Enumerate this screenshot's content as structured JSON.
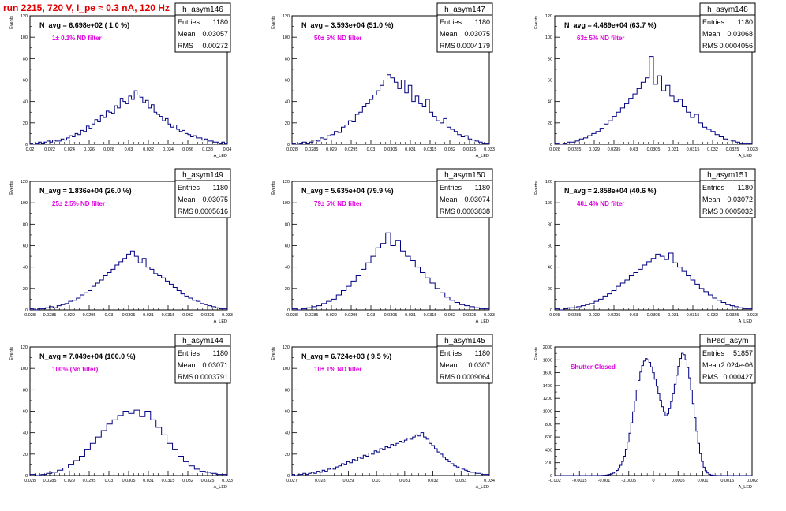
{
  "run_title": "run 2215,   720 V, I_pe ≈ 0.3 nA, 120 Hz",
  "colors": {
    "histogram": "#000080",
    "annotation": "#e000e0",
    "title": "#e00000",
    "text": "#000000"
  },
  "chart_data": [
    {
      "type": "bar",
      "name": "h_asym146",
      "navg": "N_avg = 6.698e+02 ( 1.0 %)",
      "filter": "1± 0.1% ND filter",
      "stats": {
        "entries": "1180",
        "mean": "0.03057",
        "rms": "0.00272"
      },
      "xlim": [
        0.02,
        0.04
      ],
      "ylim": [
        0,
        120
      ],
      "xticks": [
        "0.02",
        "0.022",
        "0.024",
        "0.026",
        "0.028",
        "0.03",
        "0.032",
        "0.034",
        "0.036",
        "0.038",
        "0.04"
      ],
      "yticks": [
        "0",
        "20",
        "40",
        "60",
        "80",
        "100",
        "120"
      ],
      "ylabel": "Events",
      "xlabel": "A_LED",
      "values": [
        1,
        0,
        1,
        2,
        1,
        2,
        3,
        2,
        4,
        3,
        3,
        5,
        4,
        6,
        8,
        7,
        10,
        9,
        13,
        12,
        17,
        15,
        19,
        23,
        21,
        27,
        25,
        31,
        30,
        29,
        36,
        34,
        43,
        40,
        38,
        45,
        42,
        50,
        46,
        44,
        39,
        41,
        34,
        37,
        30,
        28,
        26,
        22,
        24,
        19,
        16,
        18,
        14,
        12,
        13,
        10,
        9,
        7,
        8,
        6,
        6,
        4,
        5,
        3,
        3,
        2,
        2,
        1,
        2,
        1
      ]
    },
    {
      "type": "bar",
      "name": "h_asym147",
      "navg": "N_avg = 3.593e+04 (51.0 %)",
      "filter": "50± 5% ND filter",
      "stats": {
        "entries": "1180",
        "mean": "0.03075",
        "rms": "0.0004179"
      },
      "xlim": [
        0.028,
        0.033
      ],
      "ylim": [
        0,
        120
      ],
      "xticks": [
        "0.028",
        "0.0285",
        "0.029",
        "0.0295",
        "0.03",
        "0.0305",
        "0.031",
        "0.0315",
        "0.032",
        "0.0325",
        "0.033"
      ],
      "yticks": [
        "0",
        "20",
        "40",
        "60",
        "80",
        "100",
        "120"
      ],
      "ylabel": "Events",
      "xlabel": "A_LED",
      "values": [
        1,
        0,
        1,
        2,
        1,
        2,
        4,
        3,
        6,
        5,
        8,
        9,
        12,
        11,
        16,
        18,
        22,
        21,
        28,
        30,
        35,
        38,
        42,
        46,
        50,
        55,
        60,
        65,
        62,
        58,
        52,
        60,
        48,
        55,
        40,
        45,
        38,
        35,
        42,
        30,
        26,
        22,
        20,
        24,
        16,
        14,
        12,
        9,
        7,
        8,
        5,
        4,
        3,
        2,
        1,
        1
      ]
    },
    {
      "type": "bar",
      "name": "h_asym148",
      "navg": "N_avg = 4.489e+04 (63.7 %)",
      "filter": "63± 5% ND filter",
      "stats": {
        "entries": "1180",
        "mean": "0.03068",
        "rms": "0.0004056"
      },
      "xlim": [
        0.028,
        0.033
      ],
      "ylim": [
        0,
        120
      ],
      "xticks": [
        "0.028",
        "0.0285",
        "0.029",
        "0.0295",
        "0.03",
        "0.0305",
        "0.031",
        "0.0315",
        "0.032",
        "0.0325",
        "0.033"
      ],
      "yticks": [
        "0",
        "20",
        "40",
        "60",
        "80",
        "100",
        "120"
      ],
      "ylabel": "Events",
      "xlabel": "A_LED",
      "values": [
        1,
        0,
        1,
        2,
        2,
        3,
        5,
        6,
        8,
        10,
        12,
        15,
        19,
        22,
        26,
        30,
        34,
        38,
        43,
        47,
        52,
        58,
        62,
        82,
        56,
        64,
        50,
        55,
        45,
        40,
        42,
        35,
        30,
        25,
        28,
        20,
        16,
        14,
        12,
        9,
        7,
        5,
        4,
        3,
        2,
        1,
        1,
        1
      ]
    },
    {
      "type": "bar",
      "name": "h_asym149",
      "navg": "N_avg = 1.836e+04 (26.0 %)",
      "filter": "25± 2.5% ND filter",
      "stats": {
        "entries": "1180",
        "mean": "0.03075",
        "rms": "0.0005616"
      },
      "xlim": [
        0.028,
        0.033
      ],
      "ylim": [
        0,
        120
      ],
      "xticks": [
        "0.028",
        "0.0285",
        "0.029",
        "0.0295",
        "0.03",
        "0.0305",
        "0.031",
        "0.0315",
        "0.032",
        "0.0325",
        "0.033"
      ],
      "yticks": [
        "0",
        "20",
        "40",
        "60",
        "80",
        "100",
        "120"
      ],
      "ylabel": "Events",
      "xlabel": "A_LED",
      "values": [
        1,
        0,
        1,
        1,
        2,
        3,
        2,
        4,
        5,
        6,
        8,
        9,
        11,
        14,
        16,
        18,
        22,
        25,
        28,
        32,
        35,
        38,
        42,
        45,
        48,
        52,
        55,
        50,
        44,
        48,
        40,
        38,
        34,
        32,
        30,
        27,
        24,
        21,
        18,
        15,
        13,
        11,
        9,
        8,
        6,
        5,
        4,
        3,
        2,
        1,
        1
      ]
    },
    {
      "type": "bar",
      "name": "h_asym150",
      "navg": "N_avg = 5.635e+04 (79.9 %)",
      "filter": "79± 5% ND filter",
      "stats": {
        "entries": "1180",
        "mean": "0.03074",
        "rms": "0.0003838"
      },
      "xlim": [
        0.028,
        0.033
      ],
      "ylim": [
        0,
        120
      ],
      "xticks": [
        "0.028",
        "0.0285",
        "0.029",
        "0.0295",
        "0.03",
        "0.0305",
        "0.031",
        "0.0315",
        "0.032",
        "0.0325",
        "0.033"
      ],
      "yticks": [
        "0",
        "20",
        "40",
        "60",
        "80",
        "100",
        "120"
      ],
      "ylabel": "Events",
      "xlabel": "A_LED",
      "values": [
        1,
        0,
        1,
        2,
        3,
        4,
        6,
        8,
        10,
        14,
        18,
        22,
        27,
        32,
        38,
        44,
        50,
        58,
        62,
        72,
        60,
        65,
        55,
        50,
        46,
        40,
        35,
        30,
        25,
        20,
        16,
        12,
        9,
        7,
        5,
        4,
        3,
        2,
        1,
        1
      ]
    },
    {
      "type": "bar",
      "name": "h_asym151",
      "navg": "N_avg = 2.858e+04 (40.6 %)",
      "filter": "40± 4% ND filter",
      "stats": {
        "entries": "1180",
        "mean": "0.03072",
        "rms": "0.0005032"
      },
      "xlim": [
        0.028,
        0.033
      ],
      "ylim": [
        0,
        120
      ],
      "xticks": [
        "0.028",
        "0.0285",
        "0.029",
        "0.0295",
        "0.03",
        "0.0305",
        "0.031",
        "0.0315",
        "0.032",
        "0.0325",
        "0.033"
      ],
      "yticks": [
        "0",
        "20",
        "40",
        "60",
        "80",
        "100",
        "120"
      ],
      "ylabel": "Events",
      "xlabel": "A_LED",
      "values": [
        1,
        0,
        1,
        2,
        2,
        3,
        4,
        5,
        6,
        8,
        10,
        13,
        15,
        18,
        22,
        25,
        28,
        32,
        35,
        38,
        42,
        45,
        48,
        52,
        50,
        47,
        53,
        44,
        40,
        36,
        32,
        28,
        24,
        20,
        17,
        14,
        11,
        9,
        7,
        5,
        4,
        3,
        2,
        1,
        1
      ]
    },
    {
      "type": "bar",
      "name": "h_asym144",
      "navg": "N_avg = 7.049e+04 (100.0 %)",
      "filter": "100% (No filter)",
      "stats": {
        "entries": "1180",
        "mean": "0.03071",
        "rms": "0.0003791"
      },
      "xlim": [
        0.028,
        0.033
      ],
      "ylim": [
        0,
        120
      ],
      "xticks": [
        "0.028",
        "0.0285",
        "0.029",
        "0.0295",
        "0.03",
        "0.0305",
        "0.031",
        "0.0315",
        "0.032",
        "0.0325",
        "0.033"
      ],
      "yticks": [
        "0",
        "20",
        "40",
        "60",
        "80",
        "100",
        "120"
      ],
      "ylabel": "Events",
      "xlabel": "A_LED",
      "values": [
        1,
        0,
        1,
        2,
        3,
        5,
        7,
        10,
        14,
        18,
        24,
        30,
        36,
        42,
        48,
        52,
        56,
        60,
        58,
        61,
        55,
        60,
        52,
        45,
        38,
        30,
        24,
        18,
        13,
        9,
        6,
        4,
        3,
        2,
        1,
        1
      ]
    },
    {
      "type": "bar",
      "name": "h_asym145",
      "navg": "N_avg = 6.724e+03 ( 9.5 %)",
      "filter": "10± 1% ND filter",
      "stats": {
        "entries": "1180",
        "mean": "0.0307",
        "rms": "0.0009064"
      },
      "xlim": [
        0.027,
        0.034
      ],
      "ylim": [
        0,
        120
      ],
      "xticks": [
        "0.027",
        "0.028",
        "0.029",
        "0.03",
        "0.031",
        "0.032",
        "0.033",
        "0.034"
      ],
      "yticks": [
        "0",
        "20",
        "40",
        "60",
        "80",
        "100",
        "120"
      ],
      "ylabel": "Events",
      "xlabel": "A_LED",
      "values": [
        1,
        0,
        1,
        1,
        2,
        1,
        2,
        3,
        2,
        4,
        3,
        5,
        4,
        6,
        7,
        6,
        8,
        9,
        11,
        10,
        13,
        12,
        15,
        14,
        17,
        16,
        19,
        18,
        21,
        20,
        23,
        22,
        25,
        24,
        27,
        26,
        29,
        28,
        30,
        32,
        31,
        33,
        35,
        34,
        36,
        38,
        37,
        40,
        36,
        34,
        30,
        28,
        25,
        22,
        20,
        17,
        15,
        13,
        11,
        9,
        8,
        7,
        6,
        5,
        4,
        3,
        3,
        2,
        2,
        1,
        1,
        1
      ]
    },
    {
      "type": "bar",
      "name": "hPed_asym",
      "navg": "",
      "filter": "Shutter Closed",
      "stats": {
        "entries": "51857",
        "mean": "2.024e-06",
        "rms": "0.000427"
      },
      "xlim": [
        -0.002,
        0.002
      ],
      "ylim": [
        0,
        2000
      ],
      "xticks": [
        "-0.002",
        "-0.0015",
        "-0.001",
        "-0.0005",
        "0",
        "0.0005",
        "0.001",
        "0.0015",
        "0.002"
      ],
      "yticks": [
        "0",
        "200",
        "400",
        "600",
        "800",
        "1000",
        "1200",
        "1400",
        "1600",
        "1800",
        "2000"
      ],
      "ylabel": "Events",
      "xlabel": "A_LED",
      "values": [
        0,
        0,
        0,
        0,
        0,
        0,
        0,
        0,
        0,
        0,
        0,
        0,
        0,
        0,
        0,
        0,
        0,
        0,
        0,
        0,
        0,
        0,
        0,
        0,
        1,
        2,
        3,
        5,
        8,
        12,
        18,
        26,
        38,
        55,
        80,
        115,
        160,
        220,
        300,
        400,
        520,
        660,
        820,
        990,
        1160,
        1330,
        1480,
        1610,
        1710,
        1780,
        1820,
        1800,
        1760,
        1690,
        1600,
        1500,
        1390,
        1280,
        1170,
        1070,
        990,
        930,
        960,
        1040,
        1150,
        1280,
        1420,
        1560,
        1700,
        1820,
        1900,
        1880,
        1800,
        1680,
        1520,
        1330,
        1120,
        900,
        690,
        500,
        340,
        220,
        130,
        75,
        40,
        20,
        10,
        5,
        2,
        1,
        0,
        0,
        0,
        0,
        0,
        0,
        0,
        0,
        0,
        0,
        0,
        0,
        0,
        0,
        0,
        0,
        0,
        0,
        0
      ]
    }
  ]
}
